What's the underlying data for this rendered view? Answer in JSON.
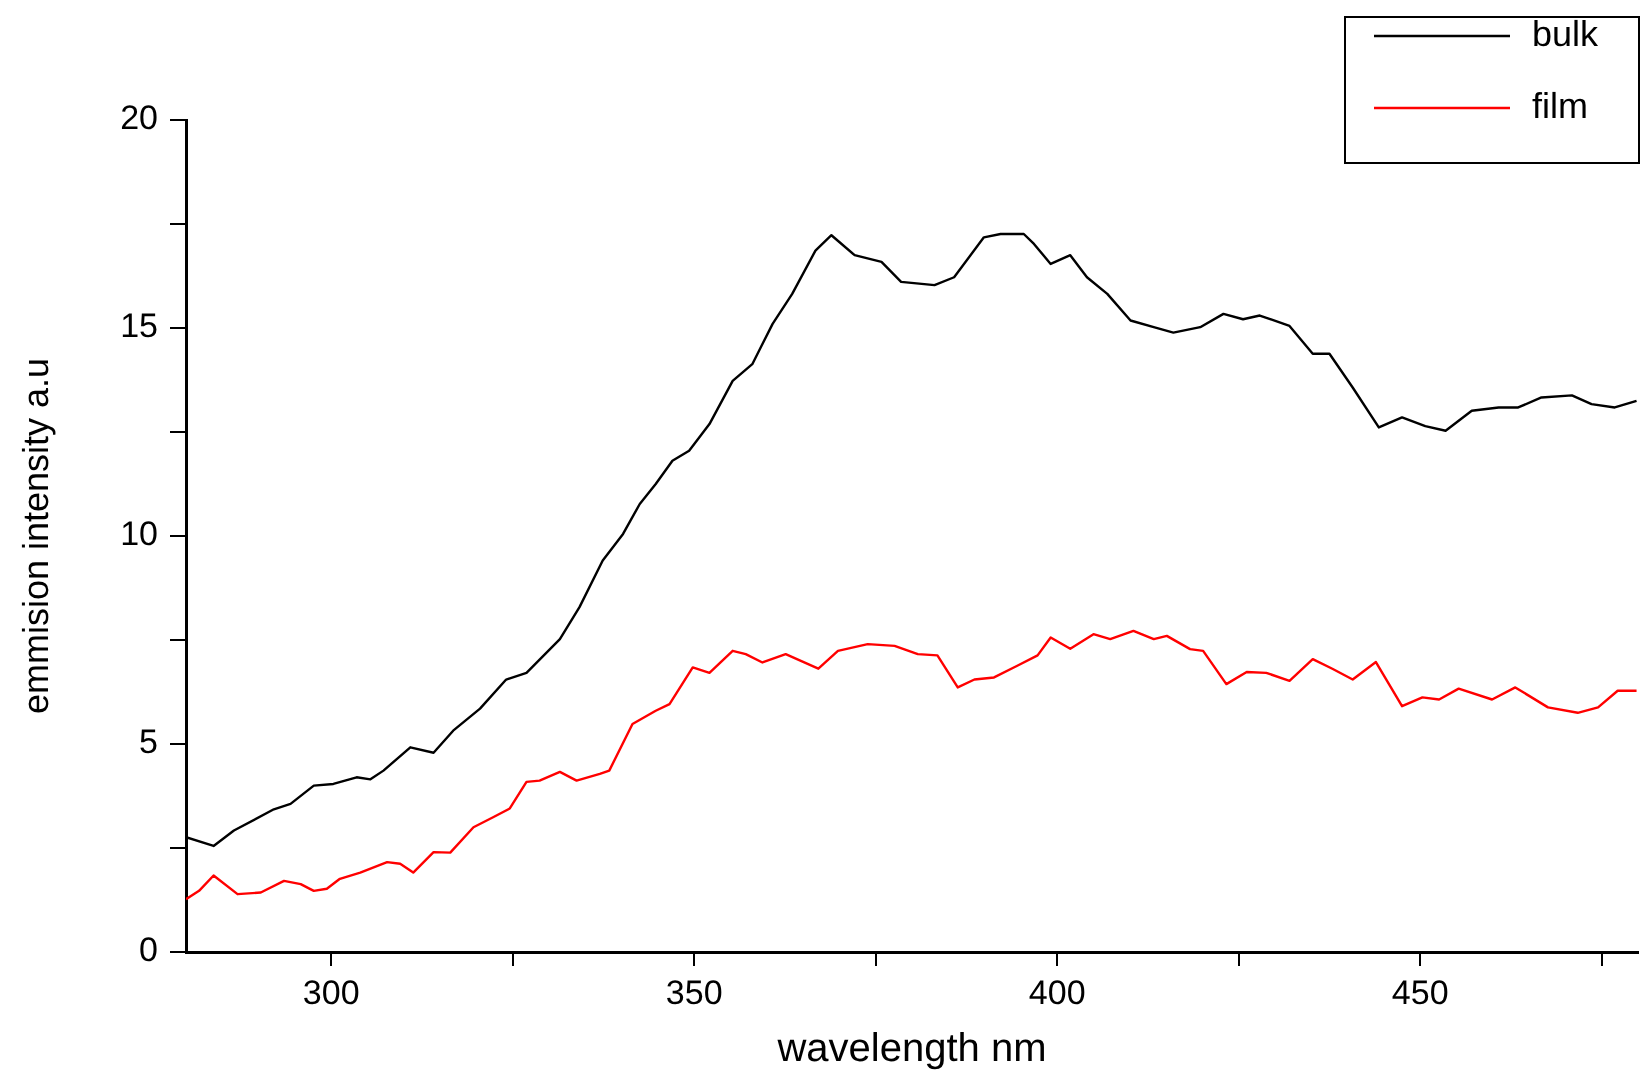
{
  "chart_data": {
    "type": "line",
    "xlabel": "wavelength nm",
    "ylabel": "emmision intensity a.u",
    "xlim": [
      280,
      480
    ],
    "xticks": [
      300,
      {
        "value": 325,
        "label": null
      },
      350,
      {
        "value": 375,
        "label": null
      },
      400,
      {
        "value": 425,
        "label": null
      },
      450,
      {
        "value": 475,
        "label": null
      }
    ],
    "ylim": [
      0,
      20
    ],
    "yticks": [
      0,
      {
        "value": 2.5,
        "label": null
      },
      5,
      {
        "value": 7.5,
        "label": null
      },
      10,
      {
        "value": 12.5,
        "label": null
      },
      15,
      {
        "value": 17.5,
        "label": null
      },
      20
    ],
    "grid": false,
    "legend": "top right",
    "marker": "none",
    "line_style": "solid",
    "series": [
      {
        "name": "bulk",
        "color": "#000000",
        "x": [
          280,
          283.8,
          286.6,
          292.1,
          294.4,
          297.6,
          300.3,
          303.5,
          305.4,
          307.2,
          310.9,
          314.1,
          316.8,
          320.5,
          324.1,
          326.9,
          331.5,
          334.2,
          337.4,
          340.2,
          342.5,
          344.7,
          347,
          349.3,
          352.1,
          355.3,
          358,
          360.8,
          363.5,
          366.7,
          368.9,
          372.1,
          375.8,
          378.5,
          383.1,
          385.8,
          389.9,
          392.2,
          395.4,
          396.8,
          399.1,
          401.8,
          404.1,
          406.9,
          410.1,
          413.3,
          416,
          419.7,
          422.9,
          425.6,
          427.9,
          432,
          435.2,
          437.5,
          440.7,
          444.3,
          447.5,
          450.7,
          453.5,
          457.1,
          460.8,
          463.5,
          466.7,
          470.9,
          473.6,
          476.8,
          479.8
        ],
        "values": [
          2.76,
          2.55,
          2.92,
          3.43,
          3.56,
          4,
          4.04,
          4.2,
          4.15,
          4.36,
          4.92,
          4.79,
          5.32,
          5.85,
          6.55,
          6.71,
          7.52,
          8.29,
          9.41,
          10.05,
          10.77,
          11.25,
          11.81,
          12.05,
          12.69,
          13.73,
          14.13,
          15.1,
          15.82,
          16.86,
          17.23,
          16.75,
          16.59,
          16.11,
          16.03,
          16.22,
          17.18,
          17.26,
          17.26,
          17.02,
          16.54,
          16.75,
          16.22,
          15.82,
          15.18,
          15.02,
          14.89,
          15.02,
          15.34,
          15.21,
          15.3,
          15.05,
          14.38,
          14.38,
          13.57,
          12.61,
          12.85,
          12.64,
          12.53,
          13.01,
          13.09,
          13.09,
          13.33,
          13.38,
          13.17,
          13.09,
          13.25
        ]
      },
      {
        "name": "film",
        "color": "#ff0000",
        "x": [
          280,
          281.8,
          283.8,
          287.1,
          290.3,
          293.5,
          295.8,
          297.6,
          299.4,
          301.2,
          304,
          307.7,
          309.5,
          311.3,
          314.1,
          316.4,
          319.6,
          322.3,
          324.6,
          326.9,
          328.7,
          331.5,
          333.8,
          337,
          338.3,
          341.5,
          344.7,
          346.6,
          349.8,
          352.1,
          355.3,
          357.1,
          359.4,
          362.6,
          367.1,
          369.8,
          373.9,
          377.6,
          380.8,
          383.5,
          386.3,
          388.6,
          391.3,
          394.5,
          397.3,
          399.1,
          401.8,
          405,
          407.3,
          410.5,
          413.3,
          415.1,
          418.3,
          420.1,
          423.3,
          426.1,
          428.8,
          432,
          435.2,
          437.9,
          440.7,
          443.9,
          447.5,
          450.3,
          452.6,
          455.3,
          459.9,
          463.1,
          467.6,
          471.7,
          474.5,
          477.2,
          479.8
        ],
        "values": [
          1.27,
          1.47,
          1.84,
          1.39,
          1.43,
          1.71,
          1.63,
          1.47,
          1.52,
          1.76,
          1.91,
          2.16,
          2.12,
          1.91,
          2.4,
          2.39,
          3,
          3.24,
          3.45,
          4.09,
          4.12,
          4.33,
          4.12,
          4.28,
          4.36,
          5.48,
          5.8,
          5.96,
          6.84,
          6.71,
          7.24,
          7.16,
          6.96,
          7.16,
          6.81,
          7.24,
          7.4,
          7.36,
          7.16,
          7.13,
          6.36,
          6.55,
          6.6,
          6.88,
          7.13,
          7.56,
          7.29,
          7.64,
          7.52,
          7.72,
          7.52,
          7.6,
          7.28,
          7.24,
          6.44,
          6.73,
          6.71,
          6.52,
          7.04,
          6.81,
          6.55,
          6.97,
          5.91,
          6.12,
          6.07,
          6.33,
          6.07,
          6.36,
          5.88,
          5.75,
          5.88,
          6.28,
          6.28
        ]
      }
    ]
  }
}
